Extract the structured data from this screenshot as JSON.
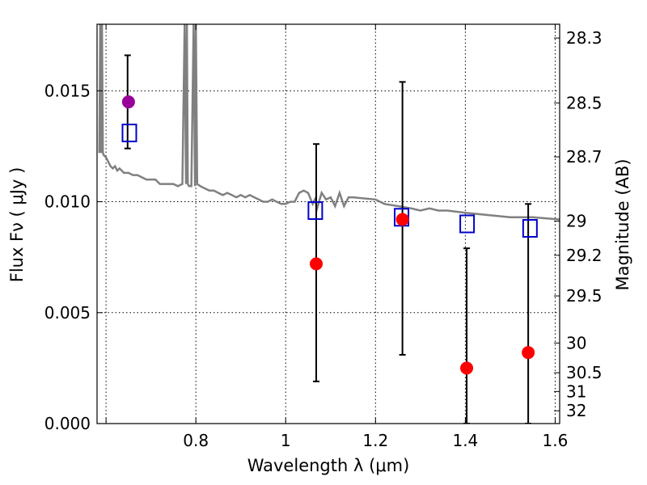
{
  "chart_data": {
    "type": "scatter",
    "title": "",
    "xlabel": "Wavelength  λ (μm)",
    "ylabel": "Flux  Fν  ( μJy )",
    "ylabel_right": "Magnitude (AB)",
    "xlim": [
      0.58,
      1.61
    ],
    "ylim": [
      0.0,
      0.018
    ],
    "grid": true,
    "x_ticks": [
      {
        "value": 0.6,
        "label": ""
      },
      {
        "value": 0.8,
        "label": "0.8"
      },
      {
        "value": 1.0,
        "label": "1"
      },
      {
        "value": 1.2,
        "label": "1.2"
      },
      {
        "value": 1.4,
        "label": "1.4"
      },
      {
        "value": 1.6,
        "label": "1.6"
      }
    ],
    "y_ticks": [
      {
        "value": 0.0,
        "label": "0.000"
      },
      {
        "value": 0.005,
        "label": "0.005"
      },
      {
        "value": 0.01,
        "label": "0.010"
      },
      {
        "value": 0.015,
        "label": "0.015"
      }
    ],
    "right_ticks": [
      {
        "value": 28.3,
        "label": "28.3"
      },
      {
        "value": 28.5,
        "label": "28.5"
      },
      {
        "value": 28.7,
        "label": "28.7"
      },
      {
        "value": 29,
        "label": "29"
      },
      {
        "value": 29.2,
        "label": "29.2"
      },
      {
        "value": 29.5,
        "label": "29.5"
      },
      {
        "value": 30,
        "label": "30"
      },
      {
        "value": 30.5,
        "label": "30.5"
      },
      {
        "value": 31,
        "label": "31"
      },
      {
        "value": 32,
        "label": "32"
      }
    ],
    "series": [
      {
        "kind": "line",
        "color": "#808080",
        "x": [
          0.585,
          0.587,
          0.589,
          0.591,
          0.593,
          0.595,
          0.6,
          0.605,
          0.61,
          0.615,
          0.62,
          0.625,
          0.63,
          0.64,
          0.65,
          0.66,
          0.67,
          0.68,
          0.69,
          0.7,
          0.71,
          0.72,
          0.73,
          0.74,
          0.75,
          0.76,
          0.77,
          0.775,
          0.778,
          0.78,
          0.782,
          0.785,
          0.79,
          0.795,
          0.798,
          0.8,
          0.803,
          0.81,
          0.82,
          0.83,
          0.84,
          0.85,
          0.86,
          0.87,
          0.88,
          0.89,
          0.9,
          0.91,
          0.92,
          0.93,
          0.94,
          0.95,
          0.96,
          0.97,
          0.98,
          0.99,
          1.0,
          1.01,
          1.02,
          1.03,
          1.04,
          1.05,
          1.06,
          1.065,
          1.07,
          1.08,
          1.09,
          1.1,
          1.11,
          1.12,
          1.13,
          1.14,
          1.15,
          1.2,
          1.22,
          1.25,
          1.28,
          1.3,
          1.32,
          1.34,
          1.36,
          1.4,
          1.45,
          1.5,
          1.55,
          1.61
        ],
        "y": [
          0.0122,
          0.018,
          0.0122,
          0.018,
          0.0122,
          0.0121,
          0.012,
          0.0118,
          0.0116,
          0.0115,
          0.0116,
          0.0114,
          0.0115,
          0.0113,
          0.0113,
          0.0112,
          0.0112,
          0.0111,
          0.011,
          0.011,
          0.011,
          0.0108,
          0.0108,
          0.0108,
          0.0108,
          0.0107,
          0.0108,
          0.018,
          0.0108,
          0.018,
          0.0108,
          0.0107,
          0.0107,
          0.018,
          0.0107,
          0.018,
          0.0108,
          0.0107,
          0.0106,
          0.0105,
          0.0105,
          0.0104,
          0.0103,
          0.0104,
          0.0103,
          0.0102,
          0.0103,
          0.0102,
          0.0103,
          0.0102,
          0.0101,
          0.01,
          0.01,
          0.0101,
          0.01,
          0.0099,
          0.0099,
          0.01,
          0.01,
          0.0104,
          0.0105,
          0.0104,
          0.0099,
          0.0101,
          0.0097,
          0.0104,
          0.0101,
          0.0102,
          0.0098,
          0.0104,
          0.0098,
          0.0102,
          0.0102,
          0.0101,
          0.0099,
          0.0098,
          0.0097,
          0.0096,
          0.0097,
          0.0096,
          0.0096,
          0.0095,
          0.0094,
          0.0093,
          0.0093,
          0.0092
        ]
      },
      {
        "kind": "errorbar",
        "color": "#000000",
        "points": [
          {
            "x": 0.648,
            "low": 0.0124,
            "high": 0.0166
          },
          {
            "x": 1.068,
            "low": 0.0019,
            "high": 0.0126
          },
          {
            "x": 1.26,
            "low": 0.0031,
            "high": 0.0154
          },
          {
            "x": 1.403,
            "low": 0.0,
            "high": 0.0079
          },
          {
            "x": 1.54,
            "low": 0.0,
            "high": 0.0099
          }
        ]
      },
      {
        "kind": "square",
        "color": "#0000cc",
        "x": [
          0.652,
          1.066,
          1.258,
          1.404,
          1.544
        ],
        "y": [
          0.0131,
          0.0096,
          0.0093,
          0.009,
          0.0088
        ]
      },
      {
        "kind": "circle",
        "color": "#ff0000",
        "x": [
          1.068,
          1.26,
          1.403,
          1.54
        ],
        "y": [
          0.0072,
          0.0092,
          0.0025,
          0.0032
        ]
      },
      {
        "kind": "circle",
        "color": "#990099",
        "x": [
          0.65
        ],
        "y": [
          0.0145
        ]
      }
    ]
  }
}
